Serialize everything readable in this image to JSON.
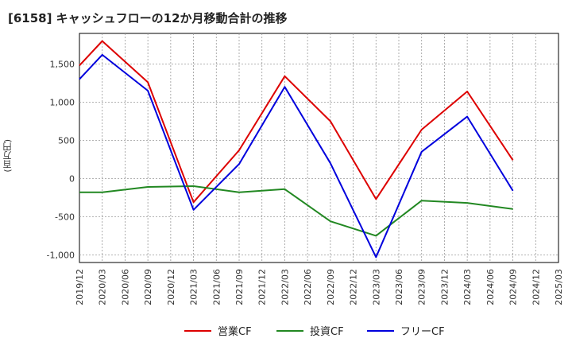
{
  "title": "[6158]  キャッシュフローの12か月移動合計の推移",
  "chart_data": {
    "type": "line",
    "title": "[6158]  キャッシュフローの12か月移動合計の推移",
    "ylabel": "(百万円)",
    "xlabel": "",
    "ylim": [
      -1100,
      1900
    ],
    "yticks": [
      -1000,
      -500,
      0,
      500,
      1000,
      1500
    ],
    "ytick_labels": [
      "-1,000",
      "-500",
      "0",
      "500",
      "1,000",
      "1,500"
    ],
    "categories": [
      "2019/12",
      "2020/03",
      "2020/06",
      "2020/09",
      "2020/12",
      "2021/03",
      "2021/06",
      "2021/09",
      "2021/12",
      "2022/03",
      "2022/06",
      "2022/09",
      "2022/12",
      "2023/03",
      "2023/06",
      "2023/09",
      "2023/12",
      "2024/03",
      "2024/06",
      "2024/09",
      "2024/12",
      "2025/03"
    ],
    "grid": true,
    "legend_position": "bottom",
    "series": [
      {
        "name": "営業CF",
        "color": "#dd0000",
        "points": [
          [
            "2019/12",
            1480
          ],
          [
            "2020/03",
            1800
          ],
          [
            "2020/09",
            1260
          ],
          [
            "2021/03",
            -310
          ],
          [
            "2021/09",
            370
          ],
          [
            "2022/03",
            1340
          ],
          [
            "2022/09",
            750
          ],
          [
            "2023/03",
            -270
          ],
          [
            "2023/09",
            640
          ],
          [
            "2024/03",
            1140
          ],
          [
            "2024/09",
            240
          ]
        ]
      },
      {
        "name": "投資CF",
        "color": "#228822",
        "points": [
          [
            "2019/12",
            -180
          ],
          [
            "2020/03",
            -180
          ],
          [
            "2020/09",
            -110
          ],
          [
            "2021/03",
            -100
          ],
          [
            "2021/09",
            -180
          ],
          [
            "2022/03",
            -140
          ],
          [
            "2022/09",
            -560
          ],
          [
            "2023/03",
            -750
          ],
          [
            "2023/09",
            -290
          ],
          [
            "2024/03",
            -320
          ],
          [
            "2024/09",
            -400
          ]
        ]
      },
      {
        "name": "フリーCF",
        "color": "#0000dd",
        "points": [
          [
            "2019/12",
            1300
          ],
          [
            "2020/03",
            1620
          ],
          [
            "2020/09",
            1150
          ],
          [
            "2021/03",
            -410
          ],
          [
            "2021/09",
            190
          ],
          [
            "2022/03",
            1200
          ],
          [
            "2022/09",
            200
          ],
          [
            "2023/03",
            -1030
          ],
          [
            "2023/09",
            350
          ],
          [
            "2024/03",
            810
          ],
          [
            "2024/09",
            -160
          ]
        ]
      }
    ]
  }
}
